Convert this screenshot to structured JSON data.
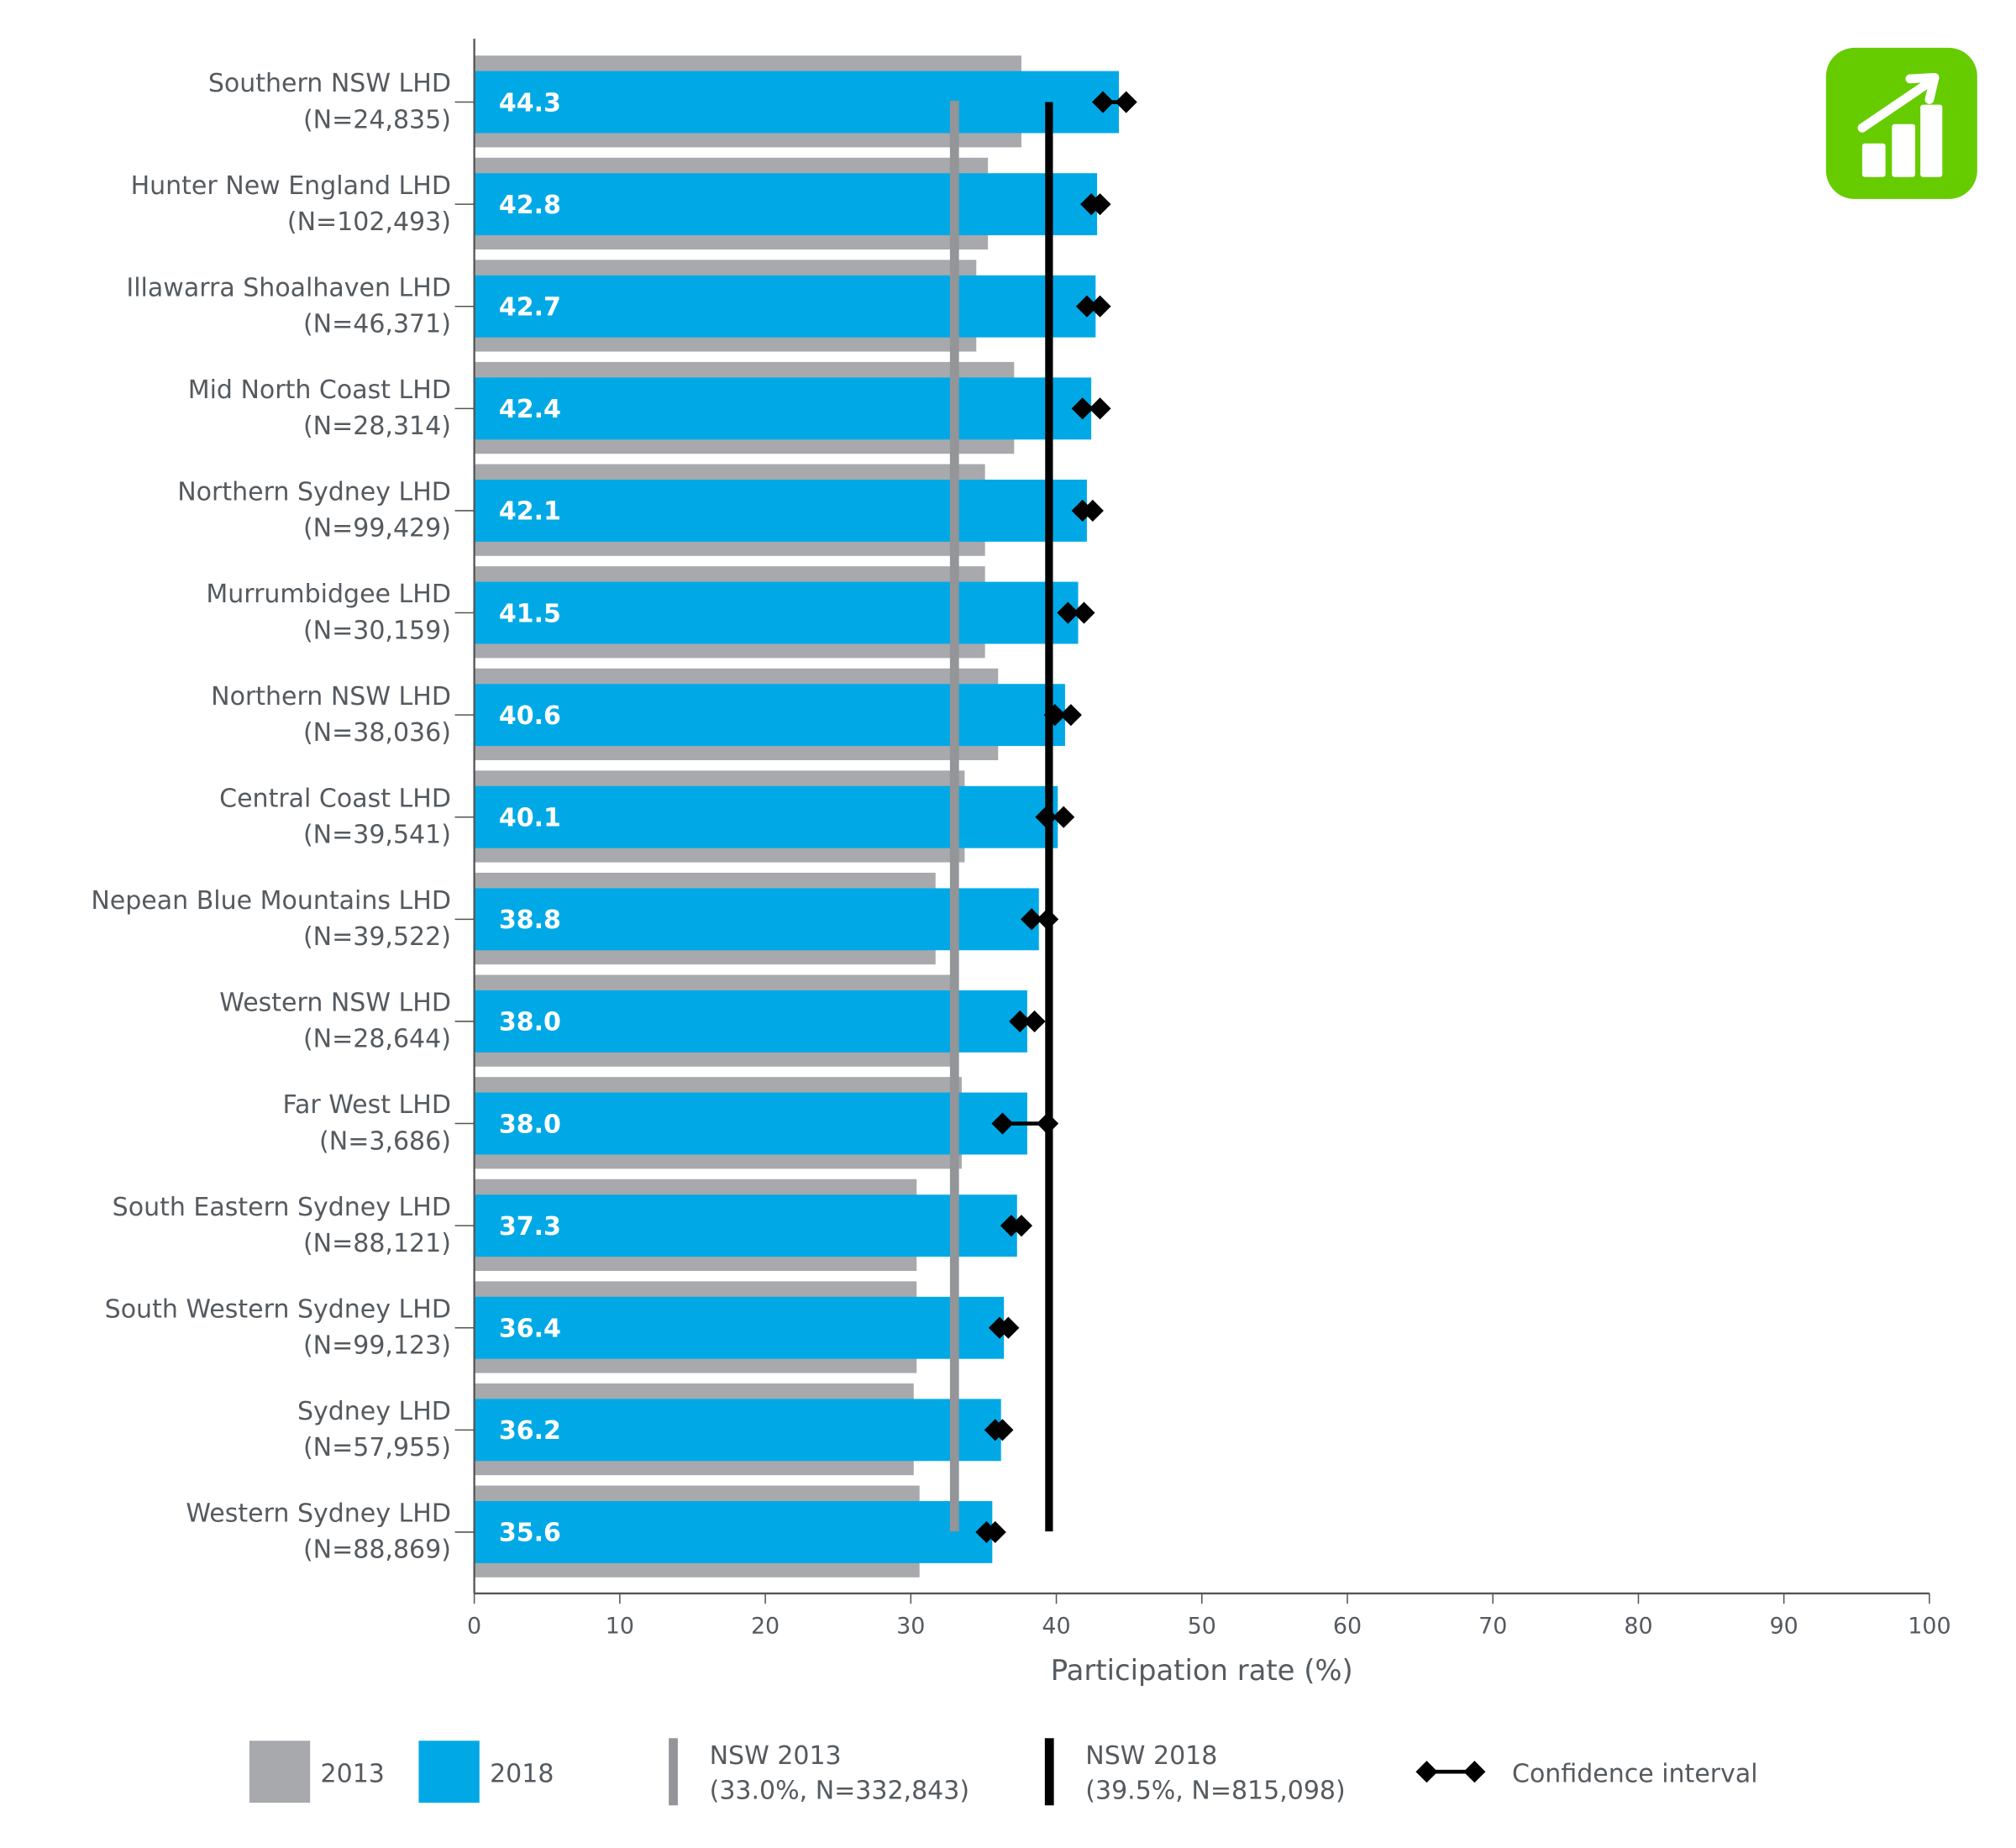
{
  "chart_data": {
    "type": "bar",
    "orientation": "horizontal",
    "title": "",
    "xlabel": "Participation rate (%)",
    "ylabel": "",
    "xlim": [
      0,
      100
    ],
    "xticks": [
      0,
      10,
      20,
      30,
      40,
      50,
      60,
      70,
      80,
      90,
      100
    ],
    "grid": false,
    "categories": [
      {
        "name": "Southern NSW LHD",
        "n": "(N=24,835)"
      },
      {
        "name": "Hunter New England LHD",
        "n": "(N=102,493)"
      },
      {
        "name": "Illawarra Shoalhaven LHD",
        "n": "(N=46,371)"
      },
      {
        "name": "Mid North Coast LHD",
        "n": "(N=28,314)"
      },
      {
        "name": "Northern Sydney LHD",
        "n": "(N=99,429)"
      },
      {
        "name": "Murrumbidgee LHD",
        "n": "(N=30,159)"
      },
      {
        "name": "Northern NSW LHD",
        "n": "(N=38,036)"
      },
      {
        "name": "Central Coast LHD",
        "n": "(N=39,541)"
      },
      {
        "name": "Nepean Blue Mountains LHD",
        "n": "(N=39,522)"
      },
      {
        "name": "Western NSW LHD",
        "n": "(N=28,644)"
      },
      {
        "name": "Far West LHD",
        "n": "(N=3,686)"
      },
      {
        "name": "South Eastern Sydney LHD",
        "n": "(N=88,121)"
      },
      {
        "name": "South Western Sydney LHD",
        "n": "(N=99,123)"
      },
      {
        "name": "Sydney LHD",
        "n": "(N=57,955)"
      },
      {
        "name": "Western Sydney LHD",
        "n": "(N=88,869)"
      }
    ],
    "series": [
      {
        "name": "2013",
        "color": "#a7a9ac",
        "values": [
          37.6,
          35.3,
          34.5,
          37.1,
          35.1,
          35.1,
          36.0,
          33.7,
          31.7,
          33.1,
          33.5,
          30.4,
          30.4,
          30.2,
          30.6
        ]
      },
      {
        "name": "2018",
        "color": "#00a9e6",
        "values": [
          44.3,
          42.8,
          42.7,
          42.4,
          42.1,
          41.5,
          40.6,
          40.1,
          38.8,
          38.0,
          38.0,
          37.3,
          36.4,
          36.2,
          35.6
        ],
        "labels": [
          "44.3",
          "42.8",
          "42.7",
          "42.4",
          "42.1",
          "41.5",
          "40.6",
          "40.1",
          "38.8",
          "38.0",
          "38.0",
          "37.3",
          "36.4",
          "36.2",
          "35.6"
        ]
      }
    ],
    "confidence_interval": {
      "name": "Confidence interval",
      "low": [
        43.2,
        42.4,
        42.1,
        41.8,
        41.8,
        40.8,
        39.9,
        39.3,
        38.3,
        37.5,
        36.3,
        36.9,
        36.1,
        35.8,
        35.2
      ],
      "high": [
        44.8,
        43.0,
        43.0,
        43.0,
        42.5,
        41.9,
        41.0,
        40.5,
        39.4,
        38.5,
        39.4,
        37.6,
        36.7,
        36.3,
        35.8
      ]
    },
    "reference_lines": [
      {
        "name": "NSW 2013",
        "detail": "(33.0%, N=332,843)",
        "value": 33.0,
        "color": "#939598"
      },
      {
        "name": "NSW 2018",
        "detail": "(39.5%, N=815,098)",
        "value": 39.5,
        "color": "#000000"
      }
    ],
    "legend_position": "bottom"
  },
  "icon": {
    "name": "chart-increase-icon",
    "color": "#66cc00"
  }
}
